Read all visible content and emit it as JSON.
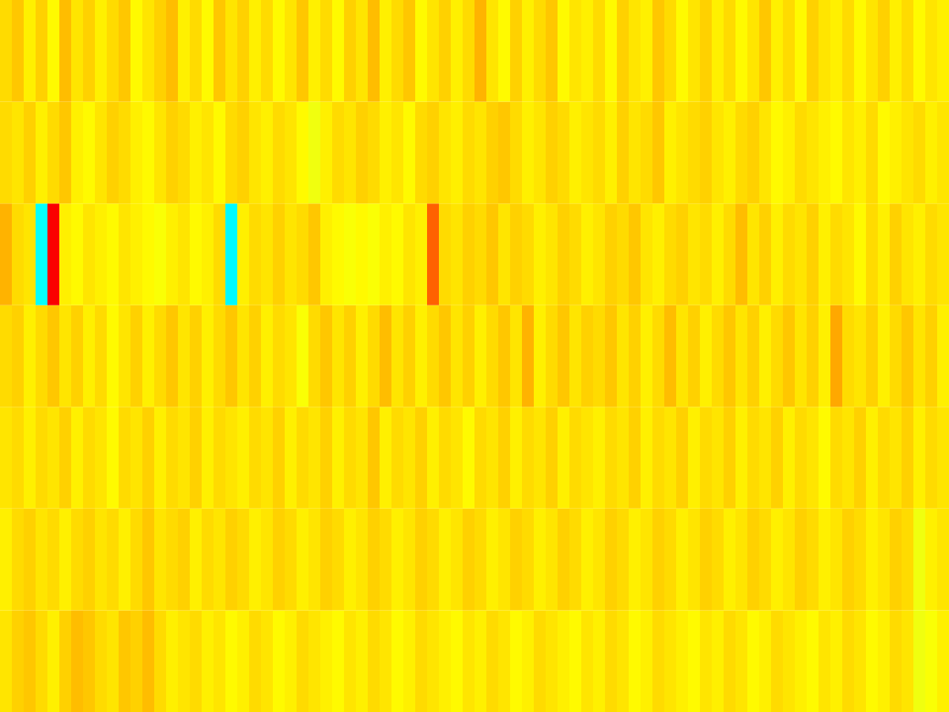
{
  "chart_data": {
    "type": "heatmap",
    "tick_labels": false,
    "color_range": [
      0,
      1
    ],
    "cells": [
      [
        0.66,
        0.68,
        0.64,
        0.67,
        0.63,
        0.69,
        0.65,
        0.67,
        0.64,
        0.66,
        0.68,
        0.63,
        0.65,
        0.67,
        0.69,
        0.64,
        0.66,
        0.63,
        0.68,
        0.65,
        0.67,
        0.64,
        0.66,
        0.63,
        0.65,
        0.68,
        0.64,
        0.66,
        0.63,
        0.67,
        0.65,
        0.69,
        0.64,
        0.66,
        0.68,
        0.63,
        0.65,
        0.67,
        0.64,
        0.66,
        0.7,
        0.65,
        0.63,
        0.67,
        0.64,
        0.66,
        0.68,
        0.63,
        0.65,
        0.64,
        0.66,
        0.63,
        0.67,
        0.65,
        0.64,
        0.68,
        0.66,
        0.63,
        0.65,
        0.67,
        0.64,
        0.66,
        0.63,
        0.65,
        0.68,
        0.64,
        0.66,
        0.63,
        0.67,
        0.65,
        0.64,
        0.66,
        0.63,
        0.65,
        0.67,
        0.64,
        0.66,
        0.63,
        0.65,
        0.64
      ],
      [
        0.66,
        0.65,
        0.67,
        0.64,
        0.66,
        0.68,
        0.64,
        0.63,
        0.65,
        0.67,
        0.66,
        0.64,
        0.63,
        0.65,
        0.67,
        0.66,
        0.64,
        0.65,
        0.63,
        0.66,
        0.67,
        0.65,
        0.64,
        0.66,
        0.65,
        0.63,
        0.61,
        0.64,
        0.66,
        0.65,
        0.67,
        0.66,
        0.64,
        0.65,
        0.63,
        0.66,
        0.67,
        0.65,
        0.64,
        0.66,
        0.65,
        0.67,
        0.68,
        0.66,
        0.64,
        0.65,
        0.67,
        0.66,
        0.64,
        0.65,
        0.66,
        0.64,
        0.67,
        0.65,
        0.66,
        0.68,
        0.64,
        0.65,
        0.66,
        0.67,
        0.65,
        0.64,
        0.66,
        0.67,
        0.65,
        0.63,
        0.64,
        0.66,
        0.65,
        0.64,
        0.63,
        0.65,
        0.64,
        0.66,
        0.63,
        0.64,
        0.65,
        0.66,
        0.64,
        0.65
      ],
      [
        0.7,
        0.66,
        0.65,
        0.38,
        0.88,
        0.64,
        0.63,
        0.65,
        0.64,
        0.63,
        0.65,
        0.64,
        0.63,
        0.62,
        0.64,
        0.65,
        0.63,
        0.64,
        0.66,
        0.37,
        0.64,
        0.66,
        0.65,
        0.67,
        0.65,
        0.66,
        0.68,
        0.64,
        0.63,
        0.62,
        0.63,
        0.62,
        0.64,
        0.63,
        0.65,
        0.64,
        0.78,
        0.66,
        0.65,
        0.67,
        0.66,
        0.68,
        0.65,
        0.67,
        0.66,
        0.64,
        0.65,
        0.67,
        0.66,
        0.64,
        0.65,
        0.67,
        0.66,
        0.68,
        0.65,
        0.64,
        0.66,
        0.67,
        0.65,
        0.66,
        0.64,
        0.66,
        0.69,
        0.65,
        0.67,
        0.64,
        0.66,
        0.65,
        0.67,
        0.64,
        0.66,
        0.65,
        0.63,
        0.66,
        0.64,
        0.67,
        0.65,
        0.64,
        0.66,
        0.65
      ],
      [
        0.66,
        0.67,
        0.64,
        0.66,
        0.68,
        0.65,
        0.67,
        0.64,
        0.66,
        0.63,
        0.65,
        0.67,
        0.64,
        0.66,
        0.68,
        0.65,
        0.67,
        0.64,
        0.66,
        0.68,
        0.65,
        0.67,
        0.64,
        0.66,
        0.65,
        0.62,
        0.66,
        0.68,
        0.65,
        0.67,
        0.64,
        0.66,
        0.69,
        0.65,
        0.67,
        0.64,
        0.66,
        0.68,
        0.65,
        0.67,
        0.64,
        0.66,
        0.68,
        0.65,
        0.7,
        0.64,
        0.66,
        0.68,
        0.65,
        0.67,
        0.66,
        0.68,
        0.65,
        0.67,
        0.64,
        0.66,
        0.69,
        0.65,
        0.67,
        0.64,
        0.66,
        0.68,
        0.65,
        0.67,
        0.64,
        0.66,
        0.68,
        0.65,
        0.67,
        0.64,
        0.71,
        0.66,
        0.65,
        0.67,
        0.64,
        0.66,
        0.68,
        0.65,
        0.67,
        0.64
      ],
      [
        0.65,
        0.66,
        0.64,
        0.66,
        0.65,
        0.67,
        0.64,
        0.66,
        0.65,
        0.63,
        0.66,
        0.65,
        0.67,
        0.64,
        0.66,
        0.65,
        0.67,
        0.64,
        0.66,
        0.65,
        0.64,
        0.66,
        0.65,
        0.67,
        0.64,
        0.66,
        0.65,
        0.67,
        0.64,
        0.66,
        0.65,
        0.68,
        0.64,
        0.66,
        0.65,
        0.67,
        0.64,
        0.66,
        0.65,
        0.63,
        0.66,
        0.65,
        0.67,
        0.64,
        0.66,
        0.65,
        0.67,
        0.64,
        0.66,
        0.65,
        0.64,
        0.66,
        0.65,
        0.67,
        0.64,
        0.66,
        0.65,
        0.67,
        0.64,
        0.66,
        0.65,
        0.67,
        0.64,
        0.66,
        0.65,
        0.67,
        0.64,
        0.66,
        0.65,
        0.63,
        0.66,
        0.65,
        0.67,
        0.64,
        0.66,
        0.65,
        0.67,
        0.64,
        0.66,
        0.65
      ],
      [
        0.64,
        0.66,
        0.67,
        0.65,
        0.66,
        0.64,
        0.66,
        0.67,
        0.65,
        0.66,
        0.64,
        0.66,
        0.68,
        0.65,
        0.66,
        0.67,
        0.64,
        0.66,
        0.65,
        0.67,
        0.66,
        0.64,
        0.65,
        0.67,
        0.66,
        0.64,
        0.65,
        0.67,
        0.66,
        0.64,
        0.65,
        0.67,
        0.66,
        0.64,
        0.65,
        0.67,
        0.66,
        0.64,
        0.65,
        0.67,
        0.66,
        0.64,
        0.65,
        0.67,
        0.66,
        0.64,
        0.65,
        0.67,
        0.66,
        0.64,
        0.65,
        0.67,
        0.66,
        0.64,
        0.65,
        0.67,
        0.66,
        0.64,
        0.65,
        0.67,
        0.66,
        0.64,
        0.65,
        0.67,
        0.66,
        0.64,
        0.65,
        0.67,
        0.66,
        0.64,
        0.65,
        0.67,
        0.66,
        0.64,
        0.65,
        0.67,
        0.66,
        0.61,
        0.64,
        0.65
      ],
      [
        0.65,
        0.67,
        0.68,
        0.66,
        0.64,
        0.67,
        0.69,
        0.68,
        0.66,
        0.65,
        0.68,
        0.67,
        0.69,
        0.66,
        0.64,
        0.65,
        0.66,
        0.64,
        0.65,
        0.63,
        0.64,
        0.66,
        0.65,
        0.63,
        0.64,
        0.66,
        0.65,
        0.64,
        0.63,
        0.65,
        0.64,
        0.66,
        0.65,
        0.63,
        0.64,
        0.66,
        0.65,
        0.64,
        0.63,
        0.65,
        0.64,
        0.66,
        0.65,
        0.63,
        0.64,
        0.66,
        0.65,
        0.64,
        0.63,
        0.65,
        0.64,
        0.66,
        0.65,
        0.63,
        0.64,
        0.66,
        0.65,
        0.64,
        0.63,
        0.65,
        0.64,
        0.66,
        0.65,
        0.63,
        0.64,
        0.66,
        0.65,
        0.64,
        0.63,
        0.65,
        0.64,
        0.66,
        0.65,
        0.63,
        0.64,
        0.66,
        0.65,
        0.61,
        0.62,
        0.64
      ]
    ]
  }
}
